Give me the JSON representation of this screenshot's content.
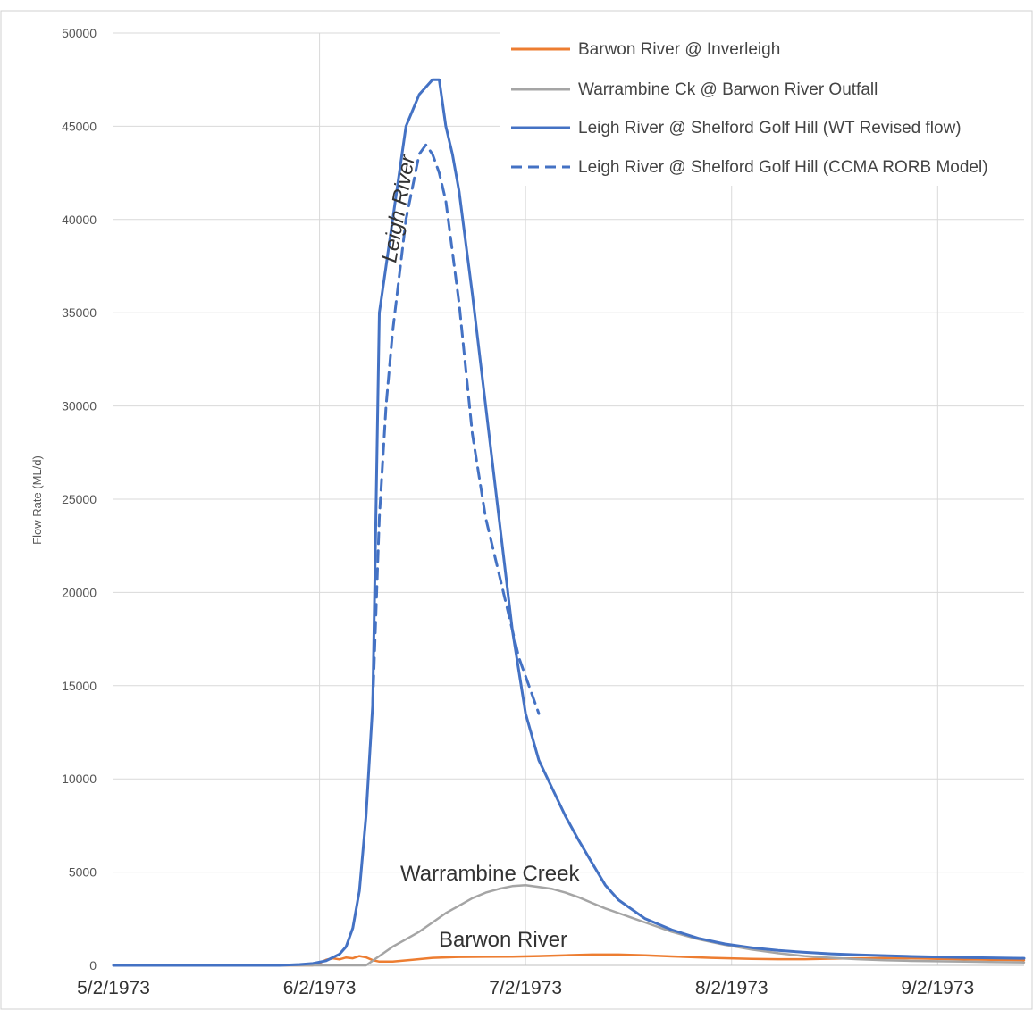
{
  "chart_data": {
    "type": "line",
    "xlabel": "",
    "ylabel": "Flow Rate (ML/d)",
    "x_tick_labels": [
      "5/2/1973",
      "6/2/1973",
      "7/2/1973",
      "8/2/1973",
      "9/2/1973"
    ],
    "x_tick_days": [
      0,
      31,
      62,
      93,
      124
    ],
    "xlim_days": [
      0,
      137
    ],
    "ylim": [
      0,
      50000
    ],
    "y_ticks": [
      0,
      5000,
      10000,
      15000,
      20000,
      25000,
      30000,
      35000,
      40000,
      45000,
      50000
    ],
    "grid": true,
    "legend_position": "top-right",
    "series": [
      {
        "name": "Barwon River @ Inverleigh",
        "color": "#ED7D31",
        "style": "solid",
        "x_days": [
          0,
          30,
          31,
          32,
          33,
          34,
          35,
          36,
          37,
          38,
          39,
          40,
          42,
          45,
          48,
          52,
          56,
          60,
          64,
          68,
          72,
          76,
          80,
          84,
          90,
          96,
          100,
          104,
          108,
          112,
          116,
          120,
          124,
          128,
          132,
          137
        ],
        "y": [
          0,
          0,
          120,
          300,
          380,
          320,
          420,
          380,
          500,
          430,
          280,
          200,
          200,
          300,
          400,
          450,
          460,
          470,
          500,
          540,
          580,
          580,
          540,
          480,
          400,
          350,
          330,
          330,
          360,
          380,
          390,
          380,
          350,
          320,
          300,
          280
        ]
      },
      {
        "name": "Warrambine Ck @ Barwon River Outfall",
        "color": "#A5A5A5",
        "style": "solid",
        "x_days": [
          0,
          38,
          40,
          42,
          44,
          46,
          48,
          50,
          52,
          54,
          56,
          58,
          60,
          62,
          64,
          66,
          68,
          70,
          72,
          74,
          76,
          78,
          80,
          84,
          88,
          92,
          96,
          100,
          104,
          108,
          112,
          116,
          120,
          124,
          128,
          132,
          137
        ],
        "y": [
          0,
          0,
          500,
          1000,
          1400,
          1800,
          2300,
          2800,
          3200,
          3600,
          3900,
          4100,
          4250,
          4300,
          4200,
          4100,
          3900,
          3650,
          3350,
          3050,
          2800,
          2550,
          2300,
          1800,
          1400,
          1100,
          850,
          650,
          500,
          400,
          330,
          280,
          240,
          220,
          200,
          180,
          160
        ]
      },
      {
        "name": "Leigh River @ Shelford Golf Hill (WT Revised flow)",
        "color": "#4472C4",
        "style": "solid",
        "x_days": [
          0,
          25,
          28,
          30,
          32,
          34,
          35,
          36,
          37,
          38,
          39,
          40,
          41,
          42,
          44,
          46,
          48,
          49,
          50,
          51,
          52,
          54,
          56,
          58,
          60,
          62,
          64,
          66,
          68,
          70,
          72,
          74,
          76,
          78,
          80,
          84,
          88,
          92,
          96,
          100,
          104,
          108,
          112,
          116,
          120,
          124,
          128,
          132,
          137
        ],
        "y": [
          0,
          0,
          50,
          100,
          250,
          600,
          1000,
          2000,
          4000,
          8000,
          14000,
          35000,
          37500,
          40000,
          45000,
          46700,
          47500,
          47500,
          45000,
          43500,
          41500,
          36000,
          30000,
          24000,
          18000,
          13500,
          11000,
          9500,
          8000,
          6700,
          5500,
          4300,
          3500,
          3000,
          2500,
          1900,
          1450,
          1150,
          950,
          800,
          700,
          620,
          560,
          520,
          480,
          450,
          420,
          400,
          380
        ]
      },
      {
        "name": "Leigh River @ Shelford Golf Hill (CCMA RORB Model)",
        "color": "#4472C4",
        "style": "dashed",
        "x_days": [
          39,
          40,
          41,
          42,
          44,
          46,
          47,
          48,
          49,
          50,
          52,
          54,
          56,
          58,
          60,
          61,
          62,
          63,
          64
        ],
        "y": [
          14000,
          24000,
          30000,
          34000,
          40000,
          43500,
          44000,
          43500,
          42500,
          41000,
          35500,
          28500,
          24000,
          21000,
          18000,
          16500,
          15500,
          14500,
          13500
        ]
      }
    ],
    "annotations": [
      "Leigh River",
      "Warrambine Creek",
      "Barwon River"
    ]
  }
}
